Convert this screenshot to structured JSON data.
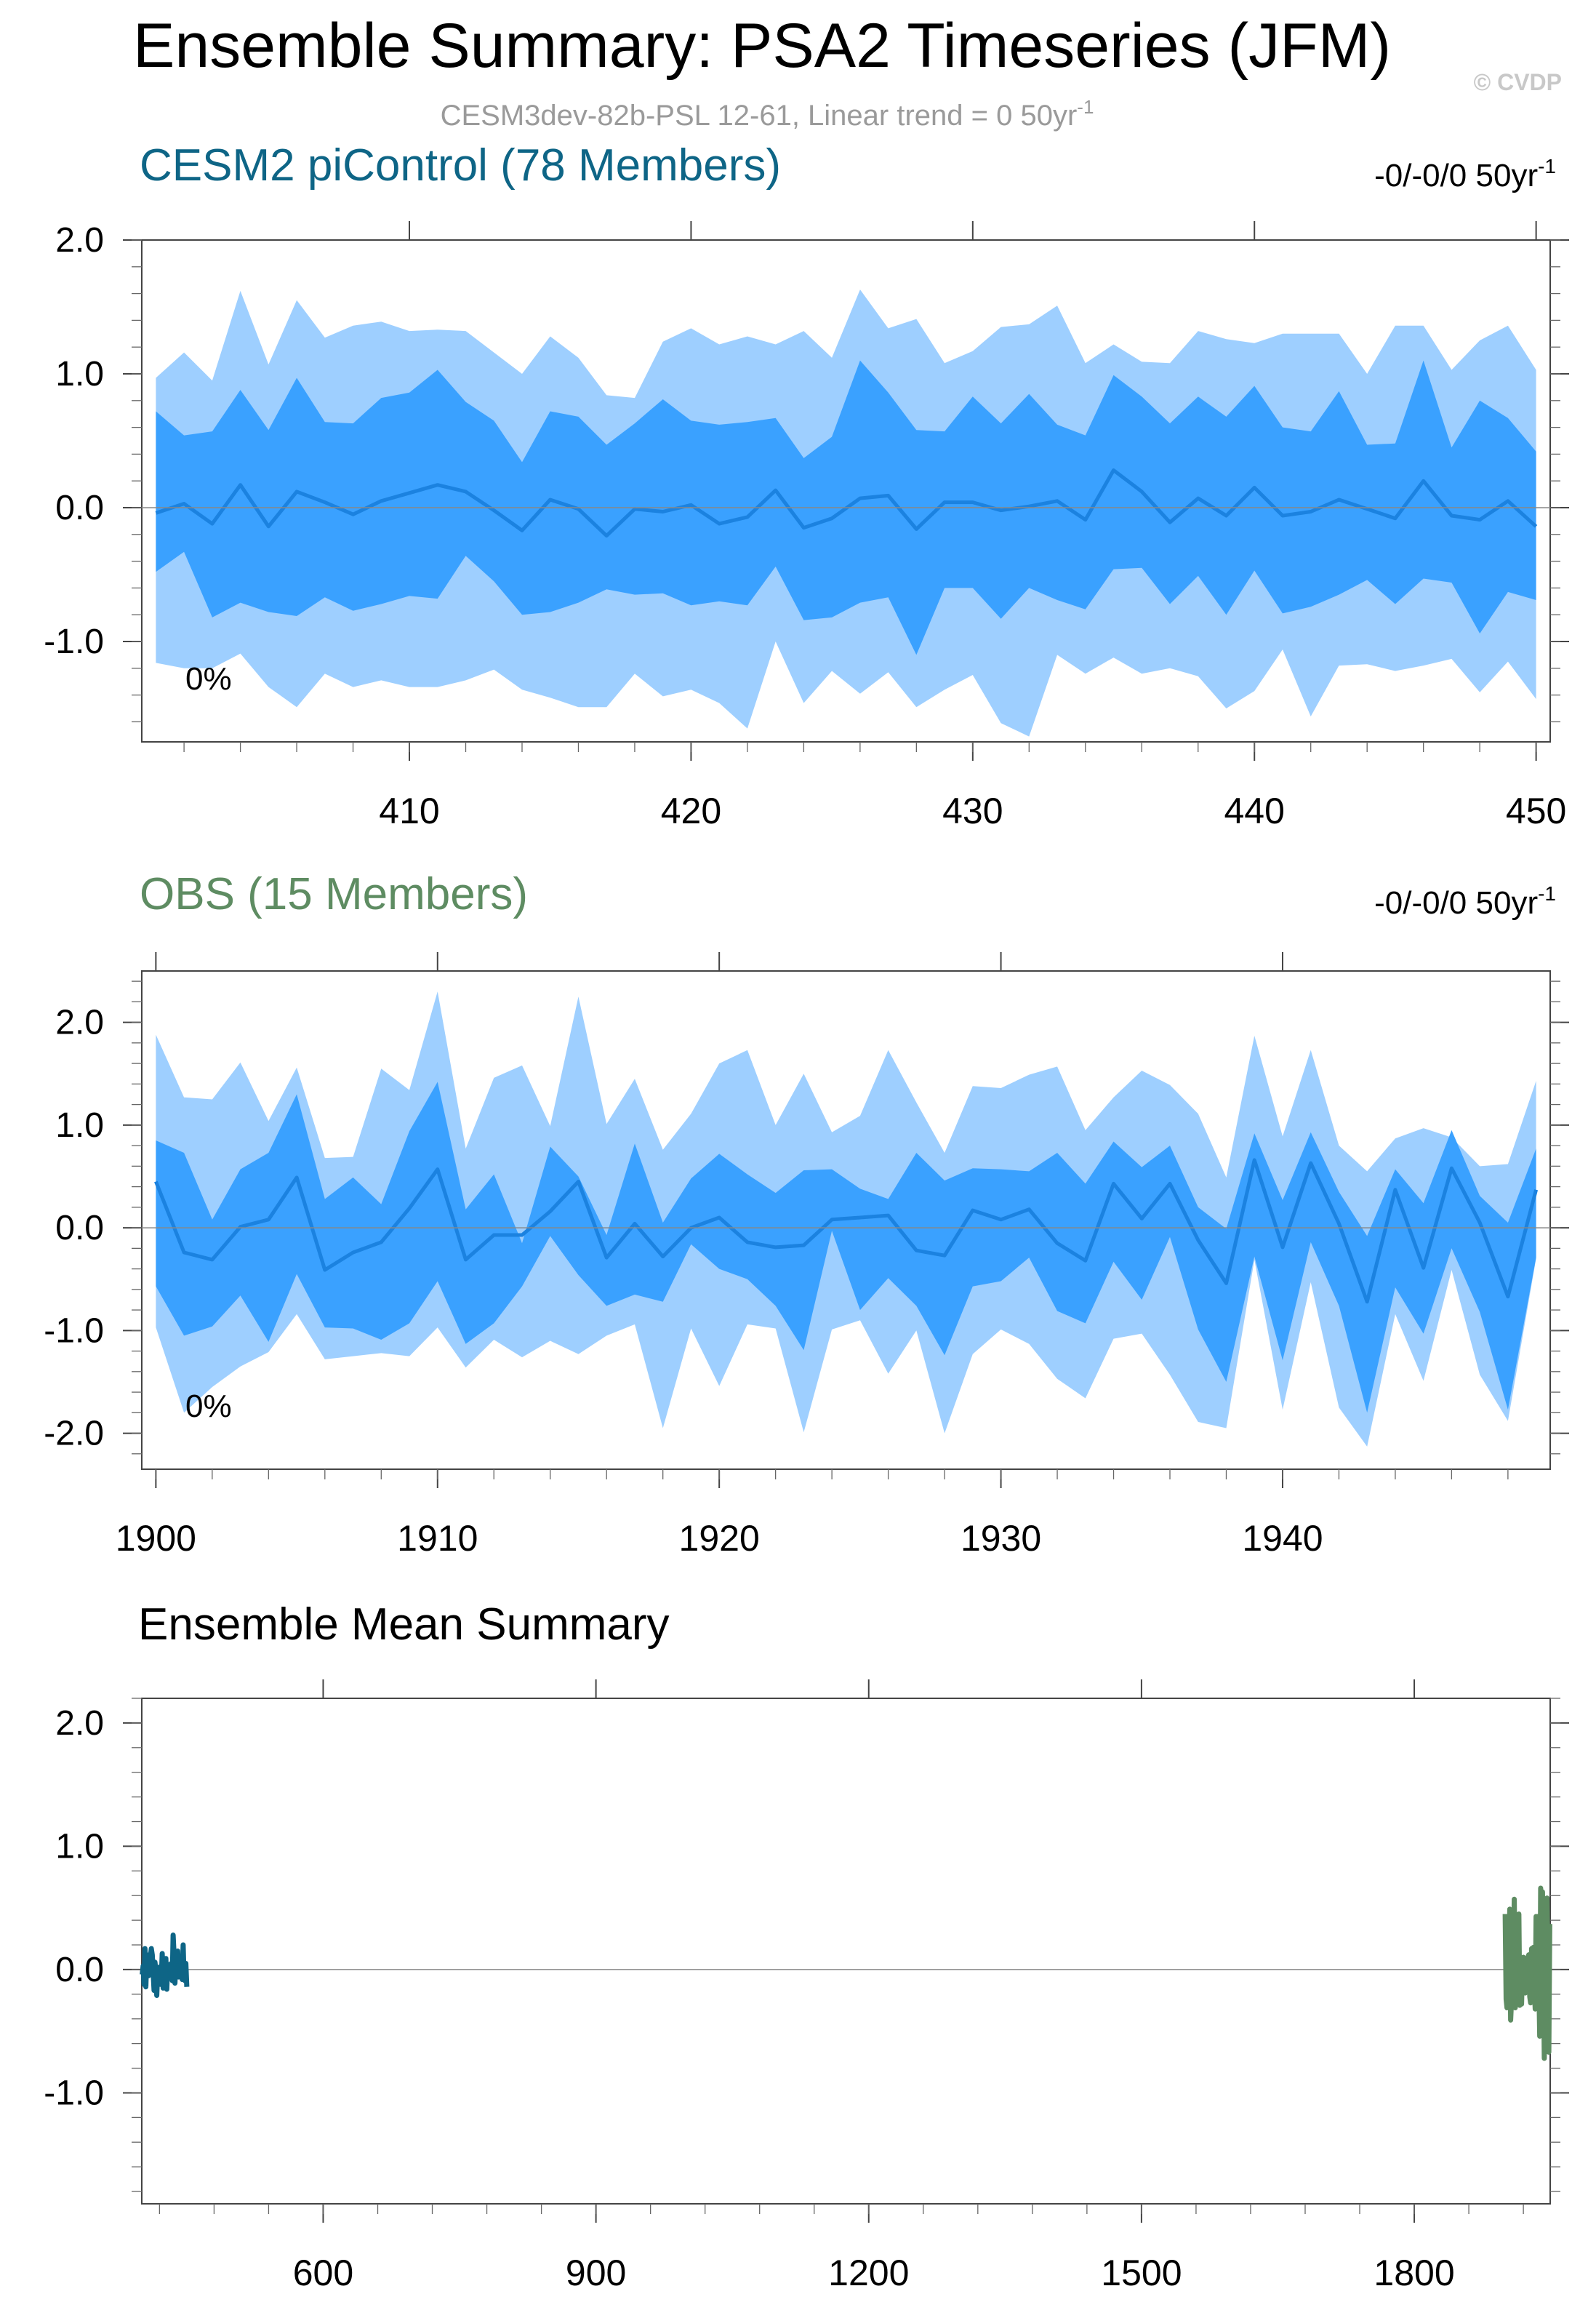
{
  "page": {
    "title": "Ensemble Summary: PSA2 Timeseries (JFM)",
    "subtitle": "CESM3dev-82b-PSL 12-61, Linear trend = 0 50yr",
    "subtitle_sup": "-1",
    "watermark": "© CVDP"
  },
  "colors": {
    "band_outer": "#9ecfff",
    "band_inner": "#3aa1ff",
    "ens_line": "#1b82e0",
    "model_title": "#0e6586",
    "obs_title": "#5e8c62",
    "subtitle": "#9a9a9a",
    "model_mean": "#0e6586",
    "obs_mean": "#5e8c62"
  },
  "chart_data": [
    {
      "type": "area",
      "id": "model",
      "title": "CESM2 piControl (78 Members)",
      "trend_label": "-0/-0/0 50yr",
      "trend_sup": "-1",
      "pct_label": "0%",
      "xlim": [
        400.5,
        450.5
      ],
      "ylim": [
        -1.75,
        2.0
      ],
      "xticks": [
        410,
        420,
        430,
        440,
        450
      ],
      "yticks": [
        2.0,
        1.0,
        0.0,
        -1.0
      ],
      "ytick_labels": [
        "2.0",
        "1.0",
        "0.0",
        "-1.0"
      ],
      "x": [
        401,
        402,
        403,
        404,
        405,
        406,
        407,
        408,
        409,
        410,
        411,
        412,
        413,
        414,
        415,
        416,
        417,
        418,
        419,
        420,
        421,
        422,
        423,
        424,
        425,
        426,
        427,
        428,
        429,
        430,
        431,
        432,
        433,
        434,
        435,
        436,
        437,
        438,
        439,
        440,
        441,
        442,
        443,
        444,
        445,
        446,
        447,
        448,
        449,
        450
      ],
      "p97_5": [
        0.97,
        1.16,
        0.95,
        1.62,
        1.07,
        1.55,
        1.27,
        1.36,
        1.39,
        1.32,
        1.33,
        1.32,
        1.16,
        1.0,
        1.28,
        1.12,
        0.84,
        0.82,
        1.24,
        1.34,
        1.22,
        1.28,
        1.22,
        1.32,
        1.12,
        1.63,
        1.34,
        1.41,
        1.08,
        1.17,
        1.35,
        1.37,
        1.51,
        1.08,
        1.22,
        1.09,
        1.08,
        1.32,
        1.26,
        1.23,
        1.3,
        1.3,
        1.3,
        1.0,
        1.36,
        1.36,
        1.03,
        1.25,
        1.36,
        1.03
      ],
      "p84": [
        0.72,
        0.54,
        0.57,
        0.88,
        0.58,
        0.97,
        0.64,
        0.63,
        0.82,
        0.86,
        1.03,
        0.79,
        0.65,
        0.34,
        0.72,
        0.68,
        0.47,
        0.63,
        0.81,
        0.65,
        0.62,
        0.64,
        0.67,
        0.37,
        0.53,
        1.1,
        0.86,
        0.58,
        0.57,
        0.83,
        0.63,
        0.85,
        0.62,
        0.54,
        0.99,
        0.83,
        0.63,
        0.83,
        0.68,
        0.91,
        0.6,
        0.57,
        0.87,
        0.47,
        0.48,
        1.1,
        0.45,
        0.8,
        0.67,
        0.42
      ],
      "mean": [
        -0.04,
        0.03,
        -0.12,
        0.17,
        -0.14,
        0.12,
        0.04,
        -0.05,
        0.05,
        0.11,
        0.17,
        0.12,
        -0.02,
        -0.17,
        0.06,
        -0.01,
        -0.21,
        -0.01,
        -0.03,
        0.02,
        -0.12,
        -0.07,
        0.13,
        -0.15,
        -0.08,
        0.07,
        0.09,
        -0.16,
        0.04,
        0.04,
        -0.02,
        0.01,
        0.05,
        -0.09,
        0.28,
        0.12,
        -0.11,
        0.07,
        -0.06,
        0.15,
        -0.06,
        -0.03,
        0.06,
        -0.01,
        -0.08,
        0.2,
        -0.06,
        -0.09,
        0.05,
        -0.14
      ],
      "p16": [
        -0.48,
        -0.33,
        -0.82,
        -0.71,
        -0.78,
        -0.81,
        -0.67,
        -0.77,
        -0.72,
        -0.66,
        -0.68,
        -0.36,
        -0.55,
        -0.8,
        -0.78,
        -0.71,
        -0.61,
        -0.65,
        -0.64,
        -0.73,
        -0.7,
        -0.73,
        -0.44,
        -0.84,
        -0.82,
        -0.71,
        -0.67,
        -1.1,
        -0.6,
        -0.6,
        -0.83,
        -0.6,
        -0.69,
        -0.76,
        -0.46,
        -0.45,
        -0.72,
        -0.51,
        -0.8,
        -0.47,
        -0.79,
        -0.74,
        -0.65,
        -0.54,
        -0.72,
        -0.53,
        -0.56,
        -0.94,
        -0.63,
        -0.69
      ],
      "p2_5": [
        -1.16,
        -1.2,
        -1.2,
        -1.09,
        -1.34,
        -1.49,
        -1.24,
        -1.34,
        -1.29,
        -1.34,
        -1.34,
        -1.29,
        -1.21,
        -1.36,
        -1.42,
        -1.49,
        -1.49,
        -1.24,
        -1.41,
        -1.36,
        -1.46,
        -1.65,
        -1.0,
        -1.46,
        -1.22,
        -1.39,
        -1.23,
        -1.49,
        -1.36,
        -1.25,
        -1.61,
        -1.71,
        -1.1,
        -1.24,
        -1.12,
        -1.24,
        -1.2,
        -1.26,
        -1.5,
        -1.37,
        -1.06,
        -1.56,
        -1.18,
        -1.17,
        -1.22,
        -1.18,
        -1.13,
        -1.38,
        -1.15,
        -1.43
      ]
    },
    {
      "type": "area",
      "id": "obs",
      "title": "OBS (15 Members)",
      "trend_label": "-0/-0/0 50yr",
      "trend_sup": "-1",
      "pct_label": "0%",
      "xlim": [
        1899.5,
        1949.5
      ],
      "ylim": [
        -2.35,
        2.5
      ],
      "xticks": [
        1900,
        1910,
        1920,
        1930,
        1940
      ],
      "yticks": [
        2.0,
        1.0,
        0.0,
        -1.0,
        -2.0
      ],
      "ytick_labels": [
        "2.0",
        "1.0",
        "0.0",
        "-1.0",
        "-2.0"
      ],
      "x": [
        1900,
        1901,
        1902,
        1903,
        1904,
        1905,
        1906,
        1907,
        1908,
        1909,
        1910,
        1911,
        1912,
        1913,
        1914,
        1915,
        1916,
        1917,
        1918,
        1919,
        1920,
        1921,
        1922,
        1923,
        1924,
        1925,
        1926,
        1927,
        1928,
        1929,
        1930,
        1931,
        1932,
        1933,
        1934,
        1935,
        1936,
        1937,
        1938,
        1939,
        1940,
        1941,
        1942,
        1943,
        1944,
        1945,
        1946,
        1947,
        1948,
        1949
      ],
      "p97_5": [
        1.88,
        1.27,
        1.25,
        1.61,
        1.04,
        1.56,
        0.68,
        0.69,
        1.55,
        1.34,
        2.3,
        0.77,
        1.46,
        1.58,
        0.99,
        2.25,
        1.01,
        1.45,
        0.76,
        1.11,
        1.6,
        1.73,
        1.0,
        1.5,
        0.93,
        1.09,
        1.73,
        1.22,
        0.73,
        1.38,
        1.36,
        1.49,
        1.57,
        0.95,
        1.27,
        1.53,
        1.39,
        1.11,
        0.49,
        1.87,
        0.89,
        1.73,
        0.8,
        0.55,
        0.87,
        0.97,
        0.88,
        0.6,
        0.62,
        1.43
      ],
      "p84": [
        0.85,
        0.73,
        0.08,
        0.57,
        0.73,
        1.3,
        0.28,
        0.49,
        0.23,
        0.94,
        1.42,
        0.18,
        0.52,
        -0.15,
        0.79,
        0.5,
        -0.07,
        0.82,
        0.05,
        0.48,
        0.72,
        0.52,
        0.34,
        0.56,
        0.57,
        0.38,
        0.28,
        0.73,
        0.46,
        0.58,
        0.57,
        0.55,
        0.73,
        0.43,
        0.84,
        0.59,
        0.8,
        0.2,
        -0.01,
        0.92,
        0.27,
        0.93,
        0.35,
        -0.08,
        0.57,
        0.24,
        0.95,
        0.31,
        0.05,
        0.77
      ],
      "mean": [
        0.45,
        -0.24,
        -0.31,
        0.01,
        0.08,
        0.49,
        -0.41,
        -0.24,
        -0.14,
        0.19,
        0.57,
        -0.31,
        -0.07,
        -0.07,
        0.16,
        0.45,
        -0.29,
        0.04,
        -0.28,
        0.0,
        0.1,
        -0.14,
        -0.19,
        -0.17,
        0.08,
        0.1,
        0.12,
        -0.22,
        -0.27,
        0.17,
        0.08,
        0.18,
        -0.15,
        -0.32,
        0.43,
        0.09,
        0.43,
        -0.12,
        -0.54,
        0.66,
        -0.19,
        0.63,
        0.04,
        -0.72,
        0.37,
        -0.39,
        0.58,
        0.05,
        -0.67,
        0.37
      ],
      "p16": [
        -0.57,
        -1.05,
        -0.96,
        -0.66,
        -1.11,
        -0.45,
        -0.97,
        -0.98,
        -1.09,
        -0.93,
        -0.52,
        -1.13,
        -0.93,
        -0.57,
        -0.08,
        -0.46,
        -0.76,
        -0.65,
        -0.72,
        -0.16,
        -0.4,
        -0.5,
        -0.76,
        -1.19,
        -0.03,
        -0.8,
        -0.49,
        -0.76,
        -1.24,
        -0.57,
        -0.52,
        -0.29,
        -0.81,
        -0.93,
        -0.33,
        -0.7,
        -0.09,
        -0.99,
        -1.5,
        -0.28,
        -1.29,
        -0.14,
        -0.76,
        -1.8,
        -0.58,
        -1.03,
        -0.2,
        -0.82,
        -1.77,
        -0.29
      ],
      "p2_5": [
        -0.97,
        -1.8,
        -1.55,
        -1.35,
        -1.21,
        -0.84,
        -1.28,
        -1.25,
        -1.22,
        -1.25,
        -0.97,
        -1.36,
        -1.09,
        -1.26,
        -1.1,
        -1.23,
        -1.05,
        -0.94,
        -1.95,
        -0.98,
        -1.54,
        -0.94,
        -0.98,
        -1.99,
        -0.99,
        -0.9,
        -1.42,
        -1.0,
        -2.0,
        -1.23,
        -0.99,
        -1.13,
        -1.47,
        -1.66,
        -1.08,
        -1.03,
        -1.43,
        -1.89,
        -1.95,
        -0.31,
        -1.77,
        -0.53,
        -1.75,
        -2.13,
        -0.84,
        -1.49,
        -0.41,
        -1.43,
        -1.88,
        -0.3
      ]
    },
    {
      "type": "line",
      "id": "summary",
      "title": "Ensemble Mean Summary",
      "xlim": [
        400.5,
        1949.5
      ],
      "ylim": [
        -1.9,
        2.2
      ],
      "xticks": [
        600,
        900,
        1200,
        1500,
        1800
      ],
      "yticks": [
        2.0,
        1.0,
        0.0,
        -1.0
      ],
      "ytick_labels": [
        "2.0",
        "1.0",
        "0.0",
        "-1.0"
      ],
      "series": [
        {
          "name": "CESM2 piControl",
          "color": "#0e6586",
          "x_ref": "model",
          "y_ref": "model.mean"
        },
        {
          "name": "OBS",
          "color": "#5e8c62",
          "x_ref": "obs",
          "y_ref": "obs.mean"
        }
      ]
    }
  ]
}
